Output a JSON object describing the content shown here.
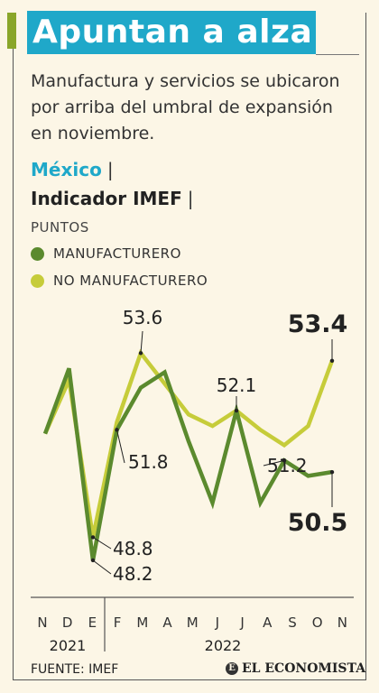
{
  "header": {
    "title": "Apuntan a alza",
    "subtitle": "Manufactura y servicios se ubicaron por arriba del umbral de expansión en noviembre."
  },
  "chart_header": {
    "country": "México",
    "indicator": "Indicador IMEF",
    "separator": "|",
    "unit": "PUNTOS"
  },
  "colors": {
    "title_bg": "#1fa8c9",
    "manufacturing": "#5b8a2e",
    "non_manufacturing": "#c6cc3a",
    "background": "#fcf6e6"
  },
  "chart_data": {
    "type": "line",
    "x": [
      "N",
      "D",
      "E",
      "F",
      "M",
      "A",
      "M",
      "J",
      "J",
      "A",
      "S",
      "O",
      "N"
    ],
    "year_labels": [
      "2021",
      "2022"
    ],
    "series": [
      {
        "name": "MANUFACTURERO",
        "values": [
          51.5,
          53.2,
          48.2,
          51.6,
          52.7,
          53.1,
          51.3,
          49.7,
          52.1,
          49.7,
          50.8,
          50.4,
          50.5
        ]
      },
      {
        "name": "NO MANUFACTURERO",
        "values": [
          51.5,
          52.9,
          48.8,
          51.8,
          53.6,
          52.8,
          52.0,
          51.7,
          52.1,
          51.6,
          51.2,
          51.7,
          53.4
        ]
      }
    ],
    "annotations": [
      "53.6",
      "51.8",
      "48.8",
      "48.2",
      "52.1",
      "51.2",
      "53.4",
      "50.5"
    ],
    "ylim": [
      47.8,
      54.1
    ]
  },
  "footer": {
    "source": "FUENTE: IMEF",
    "brand": "EL ECONOMISTA",
    "brand_logo": "E"
  }
}
